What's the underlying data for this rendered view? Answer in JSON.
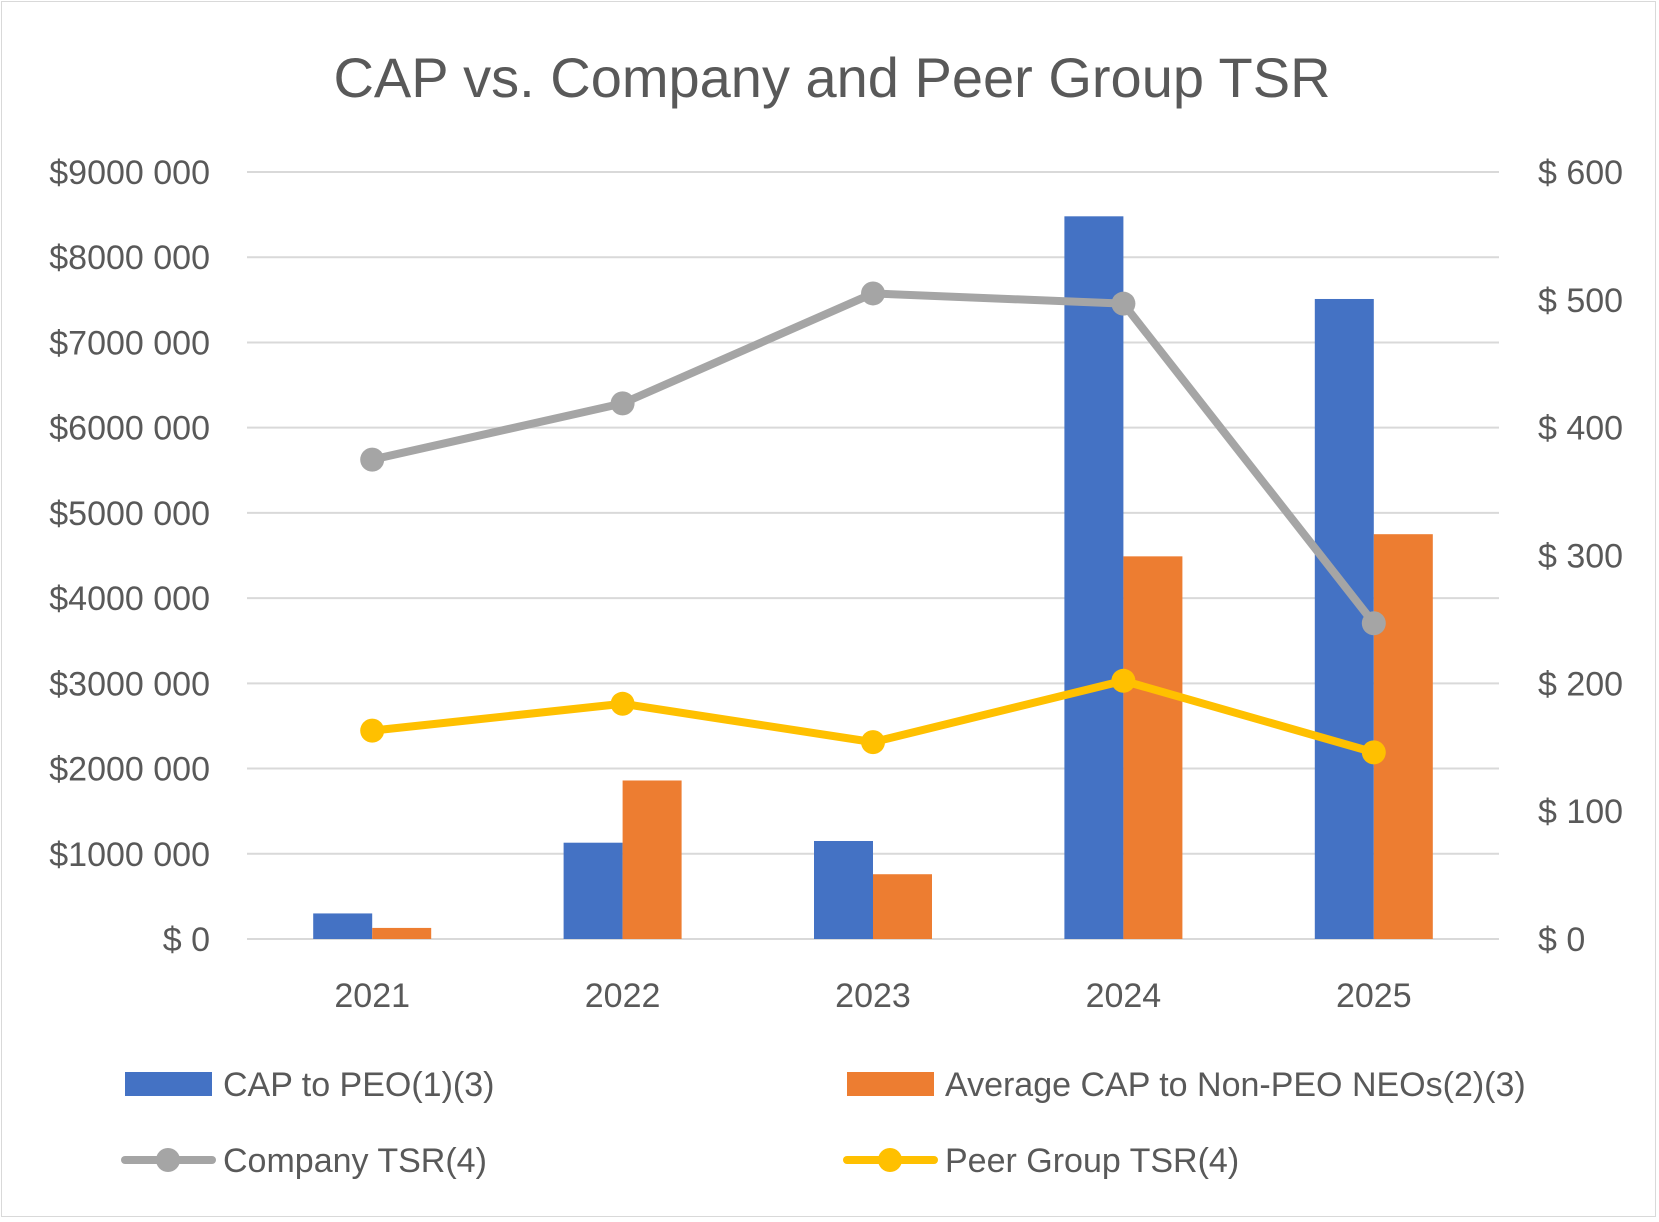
{
  "chart_data": {
    "type": "bar+line",
    "title": "CAP vs. Company and Peer Group TSR",
    "categories": [
      "2021",
      "2022",
      "2023",
      "2024",
      "2025"
    ],
    "left_axis": {
      "ylim": [
        0,
        9000000
      ],
      "ticks": [
        0,
        1000000,
        2000000,
        3000000,
        4000000,
        5000000,
        6000000,
        7000000,
        8000000,
        9000000
      ],
      "tick_labels": [
        "$ 0",
        "$1000 000",
        "$2000 000",
        "$3000 000",
        "$4000 000",
        "$5000 000",
        "$6000 000",
        "$7000 000",
        "$8000 000",
        "$9000 000"
      ]
    },
    "right_axis": {
      "ylim": [
        0,
        600
      ],
      "ticks": [
        0,
        100,
        200,
        300,
        400,
        500,
        600
      ],
      "tick_labels": [
        "$ 0",
        "$ 100",
        "$ 200",
        "$ 300",
        "$ 400",
        "$ 500",
        "$ 600"
      ]
    },
    "bar_series": [
      {
        "name": "CAP to PEO(1)(3)",
        "color": "#4472c4",
        "axis": "left",
        "values": [
          300000,
          1130000,
          1150000,
          8480000,
          7510000
        ]
      },
      {
        "name": "Average CAP to Non-PEO NEOs(2)(3)",
        "color": "#ed7d31",
        "axis": "left",
        "values": [
          130000,
          1860000,
          760000,
          4490000,
          4750000
        ]
      }
    ],
    "line_series": [
      {
        "name": "Company TSR(4)",
        "color": "#a5a5a5",
        "axis": "right",
        "values": [
          375,
          419,
          505,
          497,
          247
        ]
      },
      {
        "name": "Peer Group TSR(4)",
        "color": "#ffc000",
        "axis": "right",
        "values": [
          163,
          184,
          154,
          202,
          146
        ]
      }
    ],
    "legend_position": "bottom",
    "grid": true
  }
}
